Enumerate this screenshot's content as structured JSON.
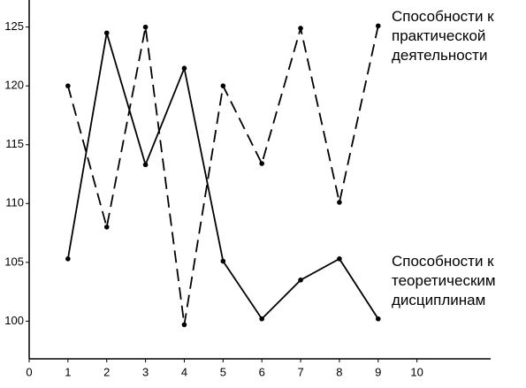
{
  "chart_data": {
    "type": "line",
    "x": [
      1,
      2,
      3,
      4,
      5,
      6,
      7,
      8,
      9
    ],
    "series": [
      {
        "name": "Способности к практической деятельности",
        "color": "#000000",
        "dash": true,
        "values": [
          120.0,
          108.0,
          125.0,
          99.7,
          120.0,
          113.4,
          124.9,
          110.1,
          125.1
        ]
      },
      {
        "name": "Способности к теоретическим дисциплинам",
        "color": "#000000",
        "dash": false,
        "values": [
          105.3,
          124.5,
          113.3,
          121.5,
          105.1,
          100.2,
          103.5,
          105.3,
          100.2
        ]
      }
    ],
    "xlim": [
      0,
      11.9
    ],
    "xticks": [
      0,
      1,
      2,
      3,
      4,
      5,
      6,
      7,
      8,
      9,
      10
    ],
    "ylim": [
      96.8,
      127.3
    ],
    "yticks": [
      100,
      105,
      110,
      115,
      120,
      125
    ],
    "grid": false
  }
}
